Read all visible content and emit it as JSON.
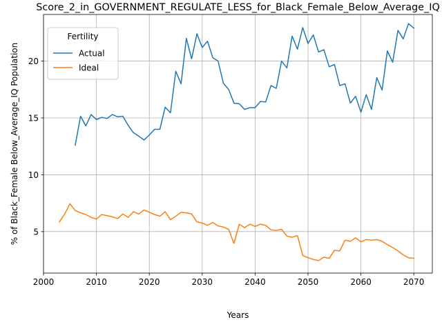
{
  "chart_data": {
    "type": "line",
    "title": "Score_2_in_GOVERNMENT_REGULATE_LESS_for_Black_Female_Below_Average_IQ",
    "xlabel": "Years",
    "ylabel": "% of Black_Female Below_Average_IQ Population",
    "xlim": [
      2000,
      2073.5
    ],
    "ylim": [
      1.35,
      24.1
    ],
    "xticks": [
      2000,
      2010,
      2020,
      2030,
      2040,
      2050,
      2060,
      2070
    ],
    "yticks": [
      5,
      10,
      15,
      20
    ],
    "grid": true,
    "legend": {
      "title": "Fertility",
      "placement": "upper-left"
    },
    "series": [
      {
        "name": "Actual",
        "color": "#1f77b4",
        "x": [
          2006,
          2007,
          2008,
          2009,
          2010,
          2011,
          2012,
          2013,
          2014,
          2015,
          2016,
          2017,
          2018,
          2019,
          2020,
          2021,
          2022,
          2023,
          2024,
          2025,
          2026,
          2027,
          2028,
          2029,
          2030,
          2031,
          2032,
          2033,
          2034,
          2035,
          2036,
          2037,
          2038,
          2039,
          2040,
          2041,
          2042,
          2043,
          2044,
          2045,
          2046,
          2047,
          2048,
          2049,
          2050,
          2051,
          2052,
          2053,
          2054,
          2055,
          2056,
          2057,
          2058,
          2059,
          2060,
          2061,
          2062,
          2063,
          2064,
          2065,
          2066,
          2067,
          2068,
          2069,
          2070
        ],
        "values": [
          12.6,
          15.15,
          14.3,
          15.3,
          14.85,
          15.05,
          14.95,
          15.3,
          15.1,
          15.15,
          14.35,
          13.7,
          13.4,
          13.05,
          13.5,
          14.0,
          14.0,
          15.95,
          15.45,
          19.1,
          18.0,
          22.0,
          20.2,
          22.4,
          21.2,
          21.75,
          20.3,
          20.0,
          18.05,
          17.5,
          16.3,
          16.25,
          15.75,
          15.9,
          15.9,
          16.45,
          16.4,
          17.85,
          17.6,
          20.0,
          19.4,
          22.2,
          21.05,
          22.95,
          21.55,
          22.3,
          20.8,
          21.0,
          19.5,
          19.7,
          17.85,
          18.0,
          16.3,
          16.9,
          15.5,
          17.05,
          15.75,
          18.55,
          17.45,
          20.9,
          19.9,
          22.7,
          21.95,
          23.3,
          22.9
        ]
      },
      {
        "name": "Ideal",
        "color": "#ff7f0e",
        "x": [
          2003,
          2004,
          2005,
          2006,
          2007,
          2008,
          2009,
          2010,
          2011,
          2012,
          2013,
          2014,
          2015,
          2016,
          2017,
          2018,
          2019,
          2020,
          2021,
          2022,
          2023,
          2024,
          2025,
          2026,
          2027,
          2028,
          2029,
          2030,
          2031,
          2032,
          2033,
          2034,
          2035,
          2036,
          2037,
          2038,
          2039,
          2040,
          2041,
          2042,
          2043,
          2044,
          2045,
          2046,
          2047,
          2048,
          2049,
          2050,
          2051,
          2052,
          2053,
          2054,
          2055,
          2056,
          2057,
          2058,
          2059,
          2060,
          2061,
          2062,
          2063,
          2064,
          2065,
          2066,
          2067,
          2068,
          2069,
          2070
        ],
        "values": [
          5.85,
          6.55,
          7.45,
          6.85,
          6.65,
          6.5,
          6.25,
          6.1,
          6.5,
          6.4,
          6.3,
          6.15,
          6.55,
          6.25,
          6.75,
          6.55,
          6.9,
          6.7,
          6.5,
          6.35,
          6.75,
          6.05,
          6.35,
          6.7,
          6.65,
          6.55,
          5.85,
          5.75,
          5.55,
          5.8,
          5.5,
          5.4,
          5.2,
          3.95,
          5.65,
          5.35,
          5.65,
          5.45,
          5.65,
          5.55,
          5.15,
          5.1,
          5.2,
          4.6,
          4.5,
          4.65,
          2.9,
          2.7,
          2.55,
          2.45,
          2.75,
          2.65,
          3.35,
          3.3,
          4.25,
          4.15,
          4.45,
          4.1,
          4.3,
          4.25,
          4.3,
          4.15,
          3.85,
          3.6,
          3.3,
          2.95,
          2.7,
          2.65
        ]
      }
    ]
  }
}
